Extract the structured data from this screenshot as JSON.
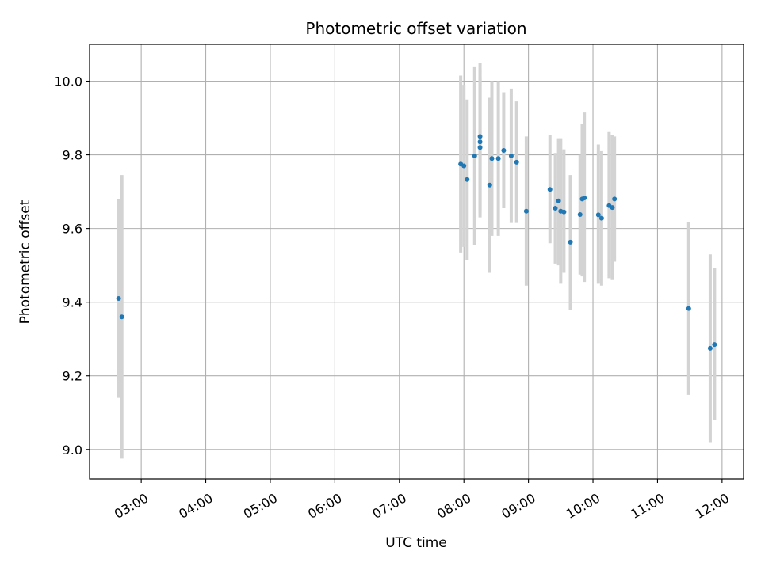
{
  "chart_data": {
    "type": "scatter",
    "title": "Photometric offset variation",
    "xlabel": "UTC time",
    "ylabel": "Photometric offset",
    "xlim": [
      "02:12",
      "12:20"
    ],
    "ylim": [
      8.92,
      10.1
    ],
    "x_ticks": [
      "03:00",
      "04:00",
      "05:00",
      "06:00",
      "07:00",
      "08:00",
      "09:00",
      "10:00",
      "11:00",
      "12:00"
    ],
    "y_ticks": [
      9.0,
      9.2,
      9.4,
      9.6,
      9.8,
      10.0
    ],
    "grid": true,
    "colors": {
      "point": "#1f77b4",
      "errorbar": "#d3d3d3",
      "grid": "#b0b0b0"
    },
    "points": [
      {
        "x": "02:39",
        "y": 9.41,
        "lo": 9.14,
        "hi": 9.68
      },
      {
        "x": "02:42",
        "y": 9.36,
        "lo": 8.975,
        "hi": 9.745
      },
      {
        "x": "07:57",
        "y": 9.775,
        "lo": 9.535,
        "hi": 10.015
      },
      {
        "x": "08:00",
        "y": 9.77,
        "lo": 9.55,
        "hi": 9.99
      },
      {
        "x": "08:03",
        "y": 9.733,
        "lo": 9.515,
        "hi": 9.95
      },
      {
        "x": "08:10",
        "y": 9.797,
        "lo": 9.555,
        "hi": 10.04
      },
      {
        "x": "08:15",
        "y": 9.85,
        "lo": 9.65,
        "hi": 10.05
      },
      {
        "x": "08:15",
        "y": 9.835,
        "lo": 9.64,
        "hi": 10.03
      },
      {
        "x": "08:15",
        "y": 9.82,
        "lo": 9.63,
        "hi": 10.01
      },
      {
        "x": "08:24",
        "y": 9.718,
        "lo": 9.48,
        "hi": 9.955
      },
      {
        "x": "08:26",
        "y": 9.79,
        "lo": 9.58,
        "hi": 10.0
      },
      {
        "x": "08:32",
        "y": 9.79,
        "lo": 9.58,
        "hi": 10.0
      },
      {
        "x": "08:37",
        "y": 9.812,
        "lo": 9.655,
        "hi": 9.97
      },
      {
        "x": "08:44",
        "y": 9.797,
        "lo": 9.615,
        "hi": 9.98
      },
      {
        "x": "08:49",
        "y": 9.78,
        "lo": 9.615,
        "hi": 9.945
      },
      {
        "x": "08:58",
        "y": 9.647,
        "lo": 9.445,
        "hi": 9.85
      },
      {
        "x": "09:20",
        "y": 9.706,
        "lo": 9.56,
        "hi": 9.853
      },
      {
        "x": "09:25",
        "y": 9.655,
        "lo": 9.505,
        "hi": 9.805
      },
      {
        "x": "09:28",
        "y": 9.675,
        "lo": 9.5,
        "hi": 9.845
      },
      {
        "x": "09:30",
        "y": 9.647,
        "lo": 9.45,
        "hi": 9.845
      },
      {
        "x": "09:33",
        "y": 9.645,
        "lo": 9.48,
        "hi": 9.815
      },
      {
        "x": "09:39",
        "y": 9.563,
        "lo": 9.38,
        "hi": 9.745
      },
      {
        "x": "09:48",
        "y": 9.638,
        "lo": 9.475,
        "hi": 9.8
      },
      {
        "x": "09:50",
        "y": 9.68,
        "lo": 9.47,
        "hi": 9.885
      },
      {
        "x": "09:52",
        "y": 9.683,
        "lo": 9.455,
        "hi": 9.915
      },
      {
        "x": "10:05",
        "y": 9.637,
        "lo": 9.45,
        "hi": 9.828
      },
      {
        "x": "10:08",
        "y": 9.628,
        "lo": 9.445,
        "hi": 9.81
      },
      {
        "x": "10:15",
        "y": 9.662,
        "lo": 9.465,
        "hi": 9.862
      },
      {
        "x": "10:18",
        "y": 9.657,
        "lo": 9.46,
        "hi": 9.855
      },
      {
        "x": "10:20",
        "y": 9.68,
        "lo": 9.51,
        "hi": 9.85
      },
      {
        "x": "11:29",
        "y": 9.383,
        "lo": 9.148,
        "hi": 9.618
      },
      {
        "x": "11:49",
        "y": 9.275,
        "lo": 9.02,
        "hi": 9.53
      },
      {
        "x": "11:53",
        "y": 9.285,
        "lo": 9.08,
        "hi": 9.492
      }
    ]
  }
}
